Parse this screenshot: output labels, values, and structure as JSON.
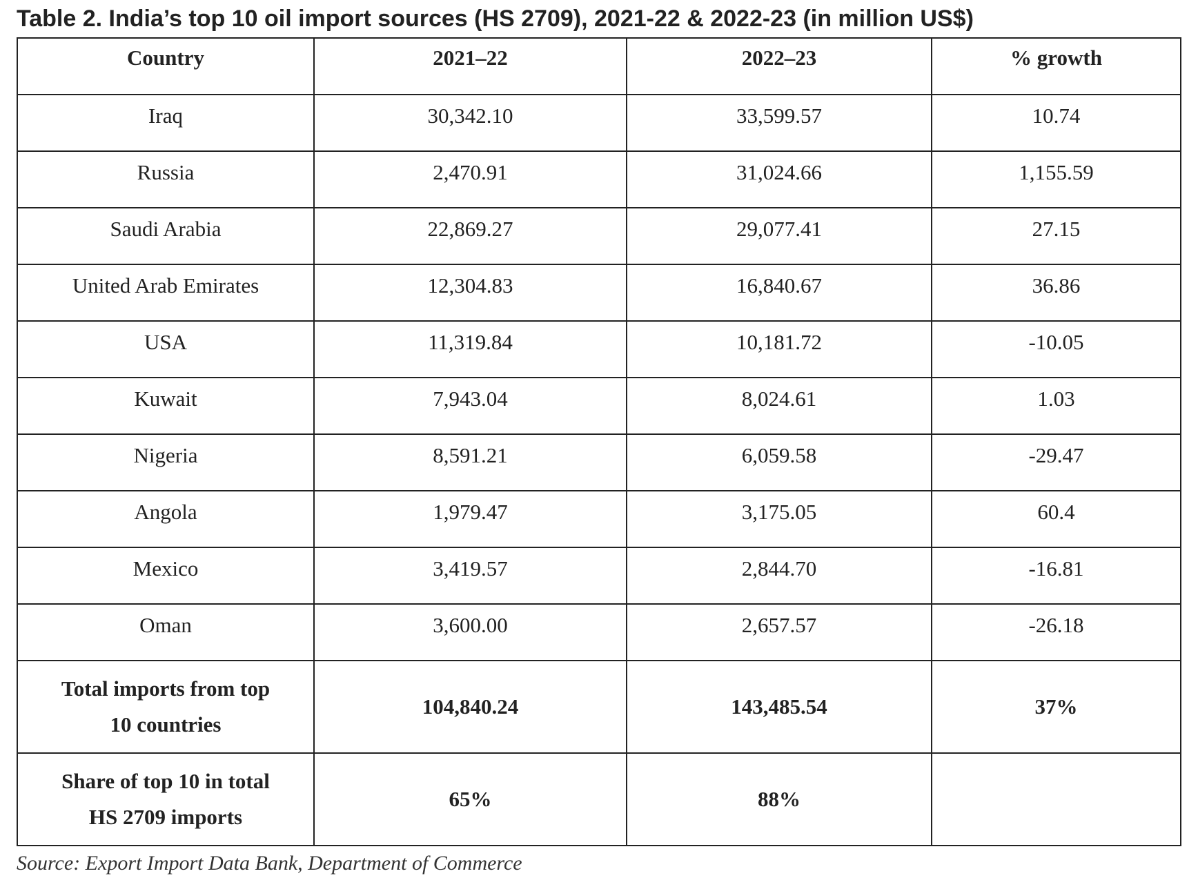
{
  "title": "Table 2. India’s top 10 oil import sources (HS 2709), 2021-22 & 2022-23 (in million US$)",
  "table": {
    "headers": [
      "Country",
      "2021–22",
      "2022–23",
      "% growth"
    ],
    "rows": [
      [
        "Iraq",
        "30,342.10",
        "33,599.57",
        "10.74"
      ],
      [
        "Russia",
        "2,470.91",
        "31,024.66",
        "1,155.59"
      ],
      [
        "Saudi Arabia",
        "22,869.27",
        "29,077.41",
        "27.15"
      ],
      [
        "United Arab Emirates",
        "12,304.83",
        "16,840.67",
        "36.86"
      ],
      [
        "USA",
        "11,319.84",
        "10,181.72",
        "-10.05"
      ],
      [
        "Kuwait",
        "7,943.04",
        "8,024.61",
        "1.03"
      ],
      [
        "Nigeria",
        "8,591.21",
        "6,059.58",
        "-29.47"
      ],
      [
        "Angola",
        "1,979.47",
        "3,175.05",
        "60.4"
      ],
      [
        "Mexico",
        "3,419.57",
        "2,844.70",
        "-16.81"
      ],
      [
        "Oman",
        "3,600.00",
        "2,657.57",
        "-26.18"
      ]
    ],
    "totals": [
      {
        "label_line1": "Total imports from top",
        "label_line2": "10 countries",
        "v2021": "104,840.24",
        "v2022": "143,485.54",
        "growth": "37%"
      },
      {
        "label_line1": "Share of top 10 in total",
        "label_line2": "HS 2709 imports",
        "v2021": "65%",
        "v2022": "88%",
        "growth": ""
      }
    ]
  },
  "source": "Source: Export Import Data Bank, Department of Commerce"
}
